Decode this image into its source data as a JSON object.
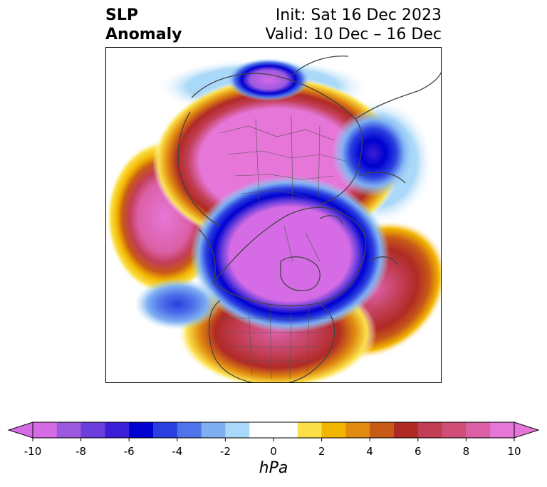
{
  "title": {
    "left": "SLP\nAnomaly",
    "right_line1": "Init: Sat 16 Dec 2023",
    "right_line2": "Valid: 10 Dec – 16 Dec"
  },
  "colorbar": {
    "unit": "hPa",
    "ticks": [
      "-10",
      "-8",
      "-6",
      "-4",
      "-2",
      "0",
      "2",
      "4",
      "6",
      "8",
      "10"
    ],
    "colors": [
      "#d66be6",
      "#9b59e0",
      "#6a3fdc",
      "#3b1fd6",
      "#0000d0",
      "#2a3fe0",
      "#4f74ea",
      "#7eaff2",
      "#aad8f8",
      "#ffffff",
      "#ffffff",
      "#fbe04a",
      "#f2b600",
      "#e08a10",
      "#c85a18",
      "#b02a25",
      "#c23e55",
      "#d04f78",
      "#dc60a8",
      "#e676d8"
    ]
  }
}
